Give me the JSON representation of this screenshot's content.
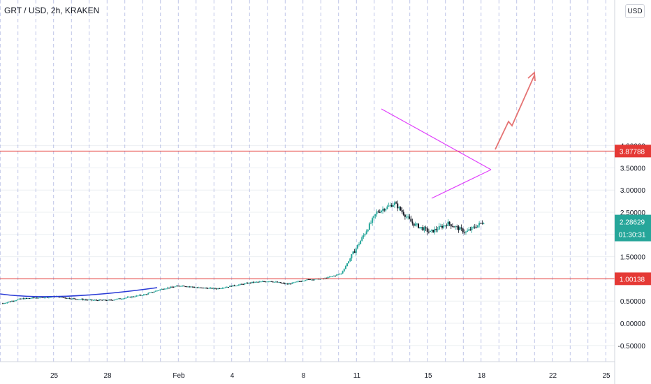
{
  "header": {
    "title": "GRT / USD, 2h, KRAKEN",
    "currency_button": "USD"
  },
  "chart_data": {
    "type": "candlestick",
    "symbol": "GRT / USD",
    "interval": "2h",
    "exchange": "KRAKEN",
    "x_ticks": [
      "25",
      "28",
      "Feb",
      "4",
      "8",
      "11",
      "15",
      "18",
      "22",
      "25"
    ],
    "y_ticks": [
      "4.00000",
      "3.50000",
      "3.00000",
      "2.50000",
      "2.00000",
      "1.50000",
      "1.00000",
      "0.50000",
      "0.00000",
      "-0.50000"
    ],
    "ylim": [
      -0.55,
      4.2
    ],
    "grid": true,
    "horizontal_levels": [
      {
        "value": 3.87788,
        "label": "3.87788",
        "color": "#e53935"
      },
      {
        "value": 1.00138,
        "label": "1.00138",
        "color": "#e53935"
      }
    ],
    "current_price": {
      "value": 2.28629,
      "label": "2.28629",
      "color": "#26a69a"
    },
    "countdown": "01:30:31",
    "price_path": [
      [
        "Jan 22",
        0.45
      ],
      [
        "Jan 23",
        0.55
      ],
      [
        "Jan 24",
        0.58
      ],
      [
        "Jan 25",
        0.6
      ],
      [
        "Jan 26",
        0.55
      ],
      [
        "Jan 27",
        0.52
      ],
      [
        "Jan 28",
        0.52
      ],
      [
        "Jan 29",
        0.58
      ],
      [
        "Jan 30",
        0.65
      ],
      [
        "Jan 31",
        0.78
      ],
      [
        "Feb 1",
        0.85
      ],
      [
        "Feb 2",
        0.8
      ],
      [
        "Feb 3",
        0.78
      ],
      [
        "Feb 4",
        0.85
      ],
      [
        "Feb 5",
        0.92
      ],
      [
        "Feb 6",
        0.95
      ],
      [
        "Feb 7",
        0.88
      ],
      [
        "Feb 8",
        0.98
      ],
      [
        "Feb 9",
        1.0
      ],
      [
        "Feb 10",
        1.12
      ],
      [
        "Feb 11",
        1.8
      ],
      [
        "Feb 12",
        2.5
      ],
      [
        "Feb 13",
        2.7
      ],
      [
        "Feb 14",
        2.25
      ],
      [
        "Feb 15",
        2.05
      ],
      [
        "Feb 16",
        2.25
      ],
      [
        "Feb 17",
        2.05
      ],
      [
        "Feb 18",
        2.29
      ]
    ],
    "colors": {
      "up": "#26a69a",
      "down": "#131722",
      "triangle": "#e040fb",
      "curve": "#2a3bd6",
      "arrow": "#e57373"
    }
  }
}
